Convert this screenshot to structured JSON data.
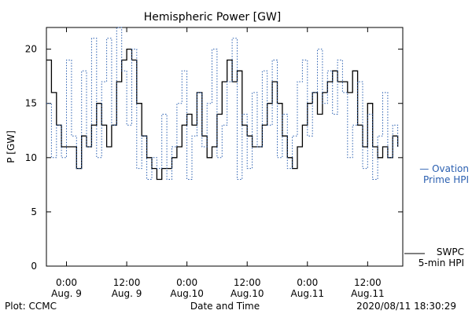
{
  "chart_data": {
    "type": "line",
    "title": "Hemispheric Power [GW]",
    "ylabel": "P [GW]",
    "xlabel": "Date and Time",
    "ylim": [
      0,
      22
    ],
    "yticks": [
      0,
      5,
      10,
      15,
      20
    ],
    "xlim": [
      "2020-08-08 20:00",
      "2020-08-11 19:00"
    ],
    "xticks": [
      {
        "x": "2020-08-09 00:00",
        "time": "0:00",
        "date": "Aug. 9"
      },
      {
        "x": "2020-08-09 12:00",
        "time": "12:00",
        "date": "Aug. 9"
      },
      {
        "x": "2020-08-10 00:00",
        "time": "0:00",
        "date": "Aug.10"
      },
      {
        "x": "2020-08-10 12:00",
        "time": "12:00",
        "date": "Aug.10"
      },
      {
        "x": "2020-08-11 00:00",
        "time": "0:00",
        "date": "Aug.11"
      },
      {
        "x": "2020-08-11 12:00",
        "time": "12:00",
        "date": "Aug.11"
      }
    ],
    "series": [
      {
        "name": "SWPC 5-min HPI",
        "color": "#000000",
        "style": "solid",
        "points": [
          [
            "2020-08-08 20:00",
            19
          ],
          [
            "2020-08-08 21:00",
            16
          ],
          [
            "2020-08-08 22:00",
            13
          ],
          [
            "2020-08-08 23:00",
            11
          ],
          [
            "2020-08-09 00:00",
            11
          ],
          [
            "2020-08-09 01:00",
            11
          ],
          [
            "2020-08-09 02:00",
            9
          ],
          [
            "2020-08-09 03:00",
            12
          ],
          [
            "2020-08-09 04:00",
            11
          ],
          [
            "2020-08-09 05:00",
            13
          ],
          [
            "2020-08-09 06:00",
            15
          ],
          [
            "2020-08-09 07:00",
            13
          ],
          [
            "2020-08-09 08:00",
            11
          ],
          [
            "2020-08-09 09:00",
            13
          ],
          [
            "2020-08-09 10:00",
            17
          ],
          [
            "2020-08-09 11:00",
            19
          ],
          [
            "2020-08-09 12:00",
            20
          ],
          [
            "2020-08-09 13:00",
            19
          ],
          [
            "2020-08-09 14:00",
            15
          ],
          [
            "2020-08-09 15:00",
            12
          ],
          [
            "2020-08-09 16:00",
            10
          ],
          [
            "2020-08-09 17:00",
            9
          ],
          [
            "2020-08-09 18:00",
            8
          ],
          [
            "2020-08-09 19:00",
            9
          ],
          [
            "2020-08-09 20:00",
            9
          ],
          [
            "2020-08-09 21:00",
            10
          ],
          [
            "2020-08-09 22:00",
            11
          ],
          [
            "2020-08-09 23:00",
            13
          ],
          [
            "2020-08-10 00:00",
            14
          ],
          [
            "2020-08-10 01:00",
            13
          ],
          [
            "2020-08-10 02:00",
            16
          ],
          [
            "2020-08-10 03:00",
            12
          ],
          [
            "2020-08-10 04:00",
            10
          ],
          [
            "2020-08-10 05:00",
            11
          ],
          [
            "2020-08-10 06:00",
            14
          ],
          [
            "2020-08-10 07:00",
            17
          ],
          [
            "2020-08-10 08:00",
            19
          ],
          [
            "2020-08-10 09:00",
            17
          ],
          [
            "2020-08-10 10:00",
            18
          ],
          [
            "2020-08-10 11:00",
            13
          ],
          [
            "2020-08-10 12:00",
            12
          ],
          [
            "2020-08-10 13:00",
            11
          ],
          [
            "2020-08-10 14:00",
            11
          ],
          [
            "2020-08-10 15:00",
            13
          ],
          [
            "2020-08-10 16:00",
            15
          ],
          [
            "2020-08-10 17:00",
            17
          ],
          [
            "2020-08-10 18:00",
            15
          ],
          [
            "2020-08-10 19:00",
            12
          ],
          [
            "2020-08-10 20:00",
            10
          ],
          [
            "2020-08-10 21:00",
            9
          ],
          [
            "2020-08-10 22:00",
            11
          ],
          [
            "2020-08-10 23:00",
            13
          ],
          [
            "2020-08-11 00:00",
            15
          ],
          [
            "2020-08-11 01:00",
            16
          ],
          [
            "2020-08-11 02:00",
            14
          ],
          [
            "2020-08-11 03:00",
            16
          ],
          [
            "2020-08-11 04:00",
            17
          ],
          [
            "2020-08-11 05:00",
            18
          ],
          [
            "2020-08-11 06:00",
            17
          ],
          [
            "2020-08-11 07:00",
            17
          ],
          [
            "2020-08-11 08:00",
            16
          ],
          [
            "2020-08-11 09:00",
            18
          ],
          [
            "2020-08-11 10:00",
            13
          ],
          [
            "2020-08-11 11:00",
            11
          ],
          [
            "2020-08-11 12:00",
            15
          ],
          [
            "2020-08-11 13:00",
            11
          ],
          [
            "2020-08-11 14:00",
            10
          ],
          [
            "2020-08-11 15:00",
            11
          ],
          [
            "2020-08-11 16:00",
            10
          ],
          [
            "2020-08-11 17:00",
            12
          ],
          [
            "2020-08-11 18:00",
            11
          ]
        ]
      },
      {
        "name": "Ovation Prime HPI",
        "color": "#2a5fb0",
        "style": "dotted",
        "points": [
          [
            "2020-08-08 20:00",
            15
          ],
          [
            "2020-08-08 21:00",
            10
          ],
          [
            "2020-08-08 22:00",
            13
          ],
          [
            "2020-08-08 23:00",
            10
          ],
          [
            "2020-08-09 00:00",
            19
          ],
          [
            "2020-08-09 01:00",
            12
          ],
          [
            "2020-08-09 02:00",
            9
          ],
          [
            "2020-08-09 03:00",
            18
          ],
          [
            "2020-08-09 04:00",
            11
          ],
          [
            "2020-08-09 05:00",
            21
          ],
          [
            "2020-08-09 06:00",
            10
          ],
          [
            "2020-08-09 07:00",
            17
          ],
          [
            "2020-08-09 08:00",
            21
          ],
          [
            "2020-08-09 09:00",
            13
          ],
          [
            "2020-08-09 10:00",
            22
          ],
          [
            "2020-08-09 11:00",
            18
          ],
          [
            "2020-08-09 12:00",
            13
          ],
          [
            "2020-08-09 13:00",
            20
          ],
          [
            "2020-08-09 14:00",
            9
          ],
          [
            "2020-08-09 15:00",
            12
          ],
          [
            "2020-08-09 16:00",
            8
          ],
          [
            "2020-08-09 17:00",
            10
          ],
          [
            "2020-08-09 18:00",
            9
          ],
          [
            "2020-08-09 19:00",
            14
          ],
          [
            "2020-08-09 20:00",
            8
          ],
          [
            "2020-08-09 21:00",
            11
          ],
          [
            "2020-08-09 22:00",
            15
          ],
          [
            "2020-08-09 23:00",
            18
          ],
          [
            "2020-08-10 00:00",
            8
          ],
          [
            "2020-08-10 01:00",
            12
          ],
          [
            "2020-08-10 02:00",
            16
          ],
          [
            "2020-08-10 03:00",
            11
          ],
          [
            "2020-08-10 04:00",
            15
          ],
          [
            "2020-08-10 05:00",
            20
          ],
          [
            "2020-08-10 06:00",
            10
          ],
          [
            "2020-08-10 07:00",
            13
          ],
          [
            "2020-08-10 08:00",
            17
          ],
          [
            "2020-08-10 09:00",
            21
          ],
          [
            "2020-08-10 10:00",
            8
          ],
          [
            "2020-08-10 11:00",
            14
          ],
          [
            "2020-08-10 12:00",
            9
          ],
          [
            "2020-08-10 13:00",
            16
          ],
          [
            "2020-08-10 14:00",
            11
          ],
          [
            "2020-08-10 15:00",
            18
          ],
          [
            "2020-08-10 16:00",
            13
          ],
          [
            "2020-08-10 17:00",
            19
          ],
          [
            "2020-08-10 18:00",
            10
          ],
          [
            "2020-08-10 19:00",
            14
          ],
          [
            "2020-08-10 20:00",
            9
          ],
          [
            "2020-08-10 21:00",
            12
          ],
          [
            "2020-08-10 22:00",
            17
          ],
          [
            "2020-08-10 23:00",
            19
          ],
          [
            "2020-08-11 00:00",
            12
          ],
          [
            "2020-08-11 01:00",
            16
          ],
          [
            "2020-08-11 02:00",
            20
          ],
          [
            "2020-08-11 03:00",
            15
          ],
          [
            "2020-08-11 04:00",
            18
          ],
          [
            "2020-08-11 05:00",
            14
          ],
          [
            "2020-08-11 06:00",
            19
          ],
          [
            "2020-08-11 07:00",
            16
          ],
          [
            "2020-08-11 08:00",
            10
          ],
          [
            "2020-08-11 09:00",
            13
          ],
          [
            "2020-08-11 10:00",
            17
          ],
          [
            "2020-08-11 11:00",
            9
          ],
          [
            "2020-08-11 12:00",
            14
          ],
          [
            "2020-08-11 13:00",
            8
          ],
          [
            "2020-08-11 14:00",
            12
          ],
          [
            "2020-08-11 15:00",
            16
          ],
          [
            "2020-08-11 16:00",
            10
          ],
          [
            "2020-08-11 17:00",
            13
          ],
          [
            "2020-08-11 18:00",
            11
          ]
        ]
      }
    ],
    "legend": {
      "ovation_line1": "— Ovation",
      "ovation_line2": "Prime HPI",
      "swpc_line1": "SWPC",
      "swpc_line2": "5-min HPI",
      "placement": "right"
    },
    "grid": false
  },
  "footer": {
    "left": "Plot: CCMC",
    "center": "Date and Time",
    "right": "2020/08/11 18:30:29"
  }
}
